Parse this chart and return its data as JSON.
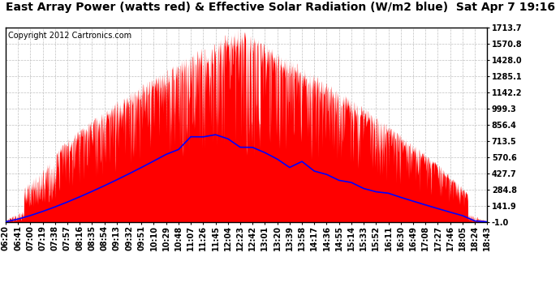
{
  "title": "East Array Power (watts red) & Effective Solar Radiation (W/m2 blue)  Sat Apr 7 19:16",
  "copyright": "Copyright 2012 Cartronics.com",
  "yticks": [
    -1.0,
    141.9,
    284.8,
    427.7,
    570.6,
    713.5,
    856.4,
    999.3,
    1142.2,
    1285.1,
    1428.0,
    1570.8,
    1713.7
  ],
  "ymin": -1.0,
  "ymax": 1713.7,
  "bg_color": "#ffffff",
  "fill_color": "#ff0000",
  "line_color": "#0000ff",
  "grid_color": "#c0c0c0",
  "title_fontsize": 10,
  "copyright_fontsize": 7,
  "tick_fontsize": 7,
  "xtick_rotation": 90,
  "time_labels": [
    "06:20",
    "06:41",
    "07:00",
    "07:19",
    "07:38",
    "07:57",
    "08:16",
    "08:35",
    "08:54",
    "09:13",
    "09:32",
    "09:51",
    "10:10",
    "10:29",
    "10:48",
    "11:07",
    "11:26",
    "11:45",
    "12:04",
    "12:23",
    "12:42",
    "13:01",
    "13:20",
    "13:39",
    "13:58",
    "14:17",
    "14:36",
    "14:55",
    "15:14",
    "15:33",
    "15:52",
    "16:11",
    "16:30",
    "16:49",
    "17:08",
    "17:27",
    "17:46",
    "18:05",
    "18:24",
    "18:43"
  ]
}
